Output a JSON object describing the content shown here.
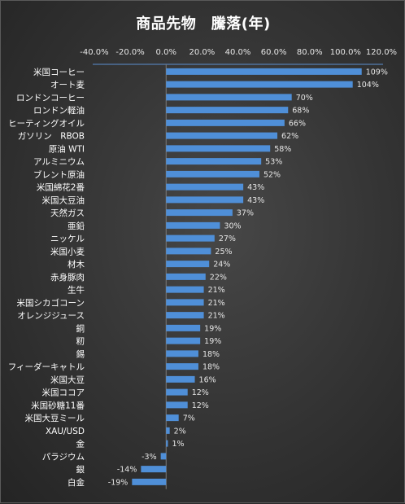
{
  "chart_data": {
    "type": "bar",
    "orientation": "horizontal",
    "title": "商品先物　騰落(年)",
    "xlim": [
      -0.4,
      1.2
    ],
    "xticks": [
      "-40.0%",
      "-20.0%",
      "0.0%",
      "20.0%",
      "40.0%",
      "60.0%",
      "80.0%",
      "100.0%",
      "120.0%"
    ],
    "xtick_values": [
      -0.4,
      -0.2,
      0.0,
      0.2,
      0.4,
      0.6,
      0.8,
      1.0,
      1.2
    ],
    "grid": false,
    "legend": "none",
    "bar_color": "#4f8fd8",
    "categories": [
      "米国コーヒー",
      "オート麦",
      "ロンドンコーヒー",
      "ロンドン軽油",
      "ヒーティングオイル",
      "ガソリン　RBOB",
      "原油 WTI",
      "アルミニウム",
      "ブレント原油",
      "米国綿花2番",
      "米国大豆油",
      "天然ガス",
      "亜鉛",
      "ニッケル",
      "米国小麦",
      "材木",
      "赤身豚肉",
      "生牛",
      "米国シカゴコーン",
      "オレンジジュース",
      "銅",
      "籾",
      "錫",
      "フィーダーキャトル",
      "米国大豆",
      "米国ココア",
      "米国砂糖11番",
      "米国大豆ミール",
      "XAU/USD",
      "金",
      "パラジウム",
      "銀",
      "白金"
    ],
    "values": [
      1.09,
      1.04,
      0.7,
      0.68,
      0.66,
      0.62,
      0.58,
      0.53,
      0.52,
      0.43,
      0.43,
      0.37,
      0.3,
      0.27,
      0.25,
      0.24,
      0.22,
      0.21,
      0.21,
      0.21,
      0.19,
      0.19,
      0.18,
      0.18,
      0.16,
      0.12,
      0.12,
      0.07,
      0.02,
      0.01,
      -0.03,
      -0.14,
      -0.19
    ],
    "data_labels": [
      "109%",
      "104%",
      "70%",
      "68%",
      "66%",
      "62%",
      "58%",
      "53%",
      "52%",
      "43%",
      "43%",
      "37%",
      "30%",
      "27%",
      "25%",
      "24%",
      "22%",
      "21%",
      "21%",
      "21%",
      "19%",
      "19%",
      "18%",
      "18%",
      "16%",
      "12%",
      "12%",
      "7%",
      "2%",
      "1%",
      "-3%",
      "-14%",
      "-19%"
    ]
  }
}
